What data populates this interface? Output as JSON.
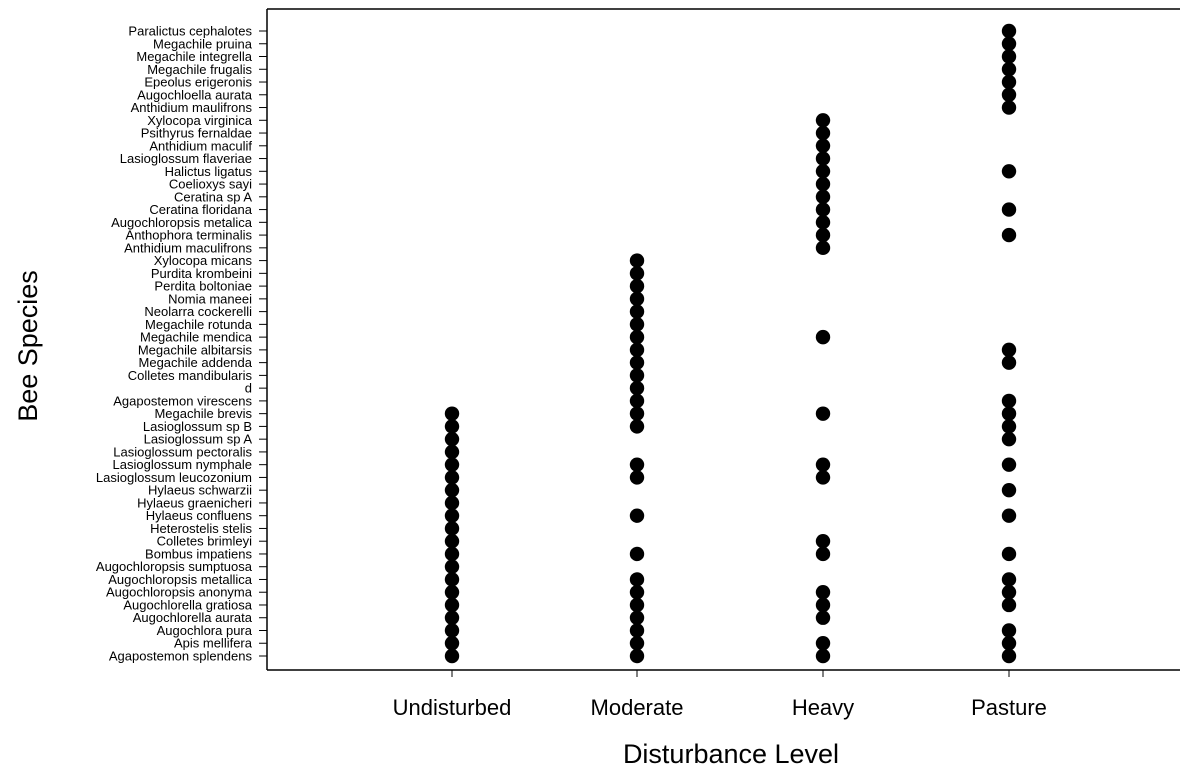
{
  "chart_data": {
    "type": "scatter",
    "xlabel": "Disturbance Level",
    "ylabel": "Bee Species",
    "x_categories": [
      "Undisturbed",
      "Moderate",
      "Heavy",
      "Pasture"
    ],
    "y_categories": [
      "Agapostemon splendens",
      "Apis mellifera",
      "Augochlora pura",
      "Augochlorella aurata",
      "Augochlorella gratiosa",
      "Augochloropsis anonyma",
      "Augochloropsis metallica",
      "Augochloropsis sumptuosa",
      "Bombus impatiens",
      "Colletes brimleyi",
      "Heterostelis stelis",
      "Hylaeus confluens",
      "Hylaeus graenicheri",
      "Hylaeus schwarzii",
      "Lasioglossum leucozonium",
      "Lasioglossum nymphale",
      "Lasioglossum pectoralis",
      "Lasioglossum sp A",
      "Lasioglossum sp B",
      "Megachile brevis",
      "Agapostemon virescens",
      "d",
      "Colletes mandibularis",
      "Megachile addenda",
      "Megachile albitarsis",
      "Megachile mendica",
      "Megachile rotunda",
      "Neolarra cockerelli",
      "Nomia maneei",
      "Perdita boltoniae",
      "Purdita krombeini",
      "Xylocopa micans",
      "Anthidium maculifrons",
      "Anthophora terminalis",
      "Augochloropsis metalica",
      "Ceratina floridana",
      "Ceratina sp A",
      "Coelioxys sayi",
      "Halictus ligatus",
      "Lasioglossum flaveriae",
      "Anthidium maculif",
      "Psithyrus fernaldae",
      "Xylocopa virginica",
      "Anthidium maulifrons",
      "Augochloella aurata",
      "Epeolus erigeronis",
      "Megachile frugalis",
      "Megachile integrella",
      "Megachile pruina",
      "Paralictus cephalotes"
    ],
    "series": [
      {
        "x": "Undisturbed",
        "y": [
          "Agapostemon splendens",
          "Apis mellifera",
          "Augochlora pura",
          "Augochlorella aurata",
          "Augochlorella gratiosa",
          "Augochloropsis anonyma",
          "Augochloropsis metallica",
          "Augochloropsis sumptuosa",
          "Bombus impatiens",
          "Colletes brimleyi",
          "Heterostelis stelis",
          "Hylaeus confluens",
          "Hylaeus graenicheri",
          "Hylaeus schwarzii",
          "Lasioglossum leucozonium",
          "Lasioglossum nymphale",
          "Lasioglossum pectoralis",
          "Lasioglossum sp A",
          "Lasioglossum sp B",
          "Megachile brevis"
        ]
      },
      {
        "x": "Moderate",
        "y": [
          "Agapostemon splendens",
          "Apis mellifera",
          "Augochlora pura",
          "Augochlorella aurata",
          "Augochlorella gratiosa",
          "Augochloropsis anonyma",
          "Augochloropsis metallica",
          "Bombus impatiens",
          "Hylaeus confluens",
          "Lasioglossum leucozonium",
          "Lasioglossum nymphale",
          "Lasioglossum sp B",
          "Megachile brevis",
          "Agapostemon virescens",
          "d",
          "Colletes mandibularis",
          "Megachile addenda",
          "Megachile albitarsis",
          "Megachile mendica",
          "Megachile rotunda",
          "Neolarra cockerelli",
          "Nomia maneei",
          "Perdita boltoniae",
          "Purdita krombeini",
          "Xylocopa micans"
        ]
      },
      {
        "x": "Heavy",
        "y": [
          "Agapostemon splendens",
          "Apis mellifera",
          "Augochlorella aurata",
          "Augochlorella gratiosa",
          "Augochloropsis anonyma",
          "Bombus impatiens",
          "Colletes brimleyi",
          "Lasioglossum leucozonium",
          "Lasioglossum nymphale",
          "Megachile brevis",
          "Megachile mendica",
          "Anthidium maculifrons",
          "Anthophora terminalis",
          "Augochloropsis metalica",
          "Ceratina floridana",
          "Ceratina sp A",
          "Coelioxys sayi",
          "Halictus ligatus",
          "Lasioglossum flaveriae",
          "Anthidium maculif",
          "Psithyrus fernaldae",
          "Xylocopa virginica"
        ]
      },
      {
        "x": "Pasture",
        "y": [
          "Agapostemon splendens",
          "Apis mellifera",
          "Augochlora pura",
          "Augochlorella gratiosa",
          "Augochloropsis anonyma",
          "Augochloropsis metallica",
          "Bombus impatiens",
          "Hylaeus confluens",
          "Hylaeus schwarzii",
          "Lasioglossum nymphale",
          "Lasioglossum sp A",
          "Lasioglossum sp B",
          "Megachile brevis",
          "Agapostemon virescens",
          "Megachile addenda",
          "Megachile albitarsis",
          "Anthophora terminalis",
          "Ceratina floridana",
          "Halictus ligatus",
          "Anthidium maulifrons",
          "Augochloella aurata",
          "Epeolus erigeronis",
          "Megachile frugalis",
          "Megachile integrella",
          "Megachile pruina",
          "Paralictus cephalotes"
        ]
      }
    ],
    "marker_color": "#000000",
    "grid": false,
    "legend": "none"
  }
}
